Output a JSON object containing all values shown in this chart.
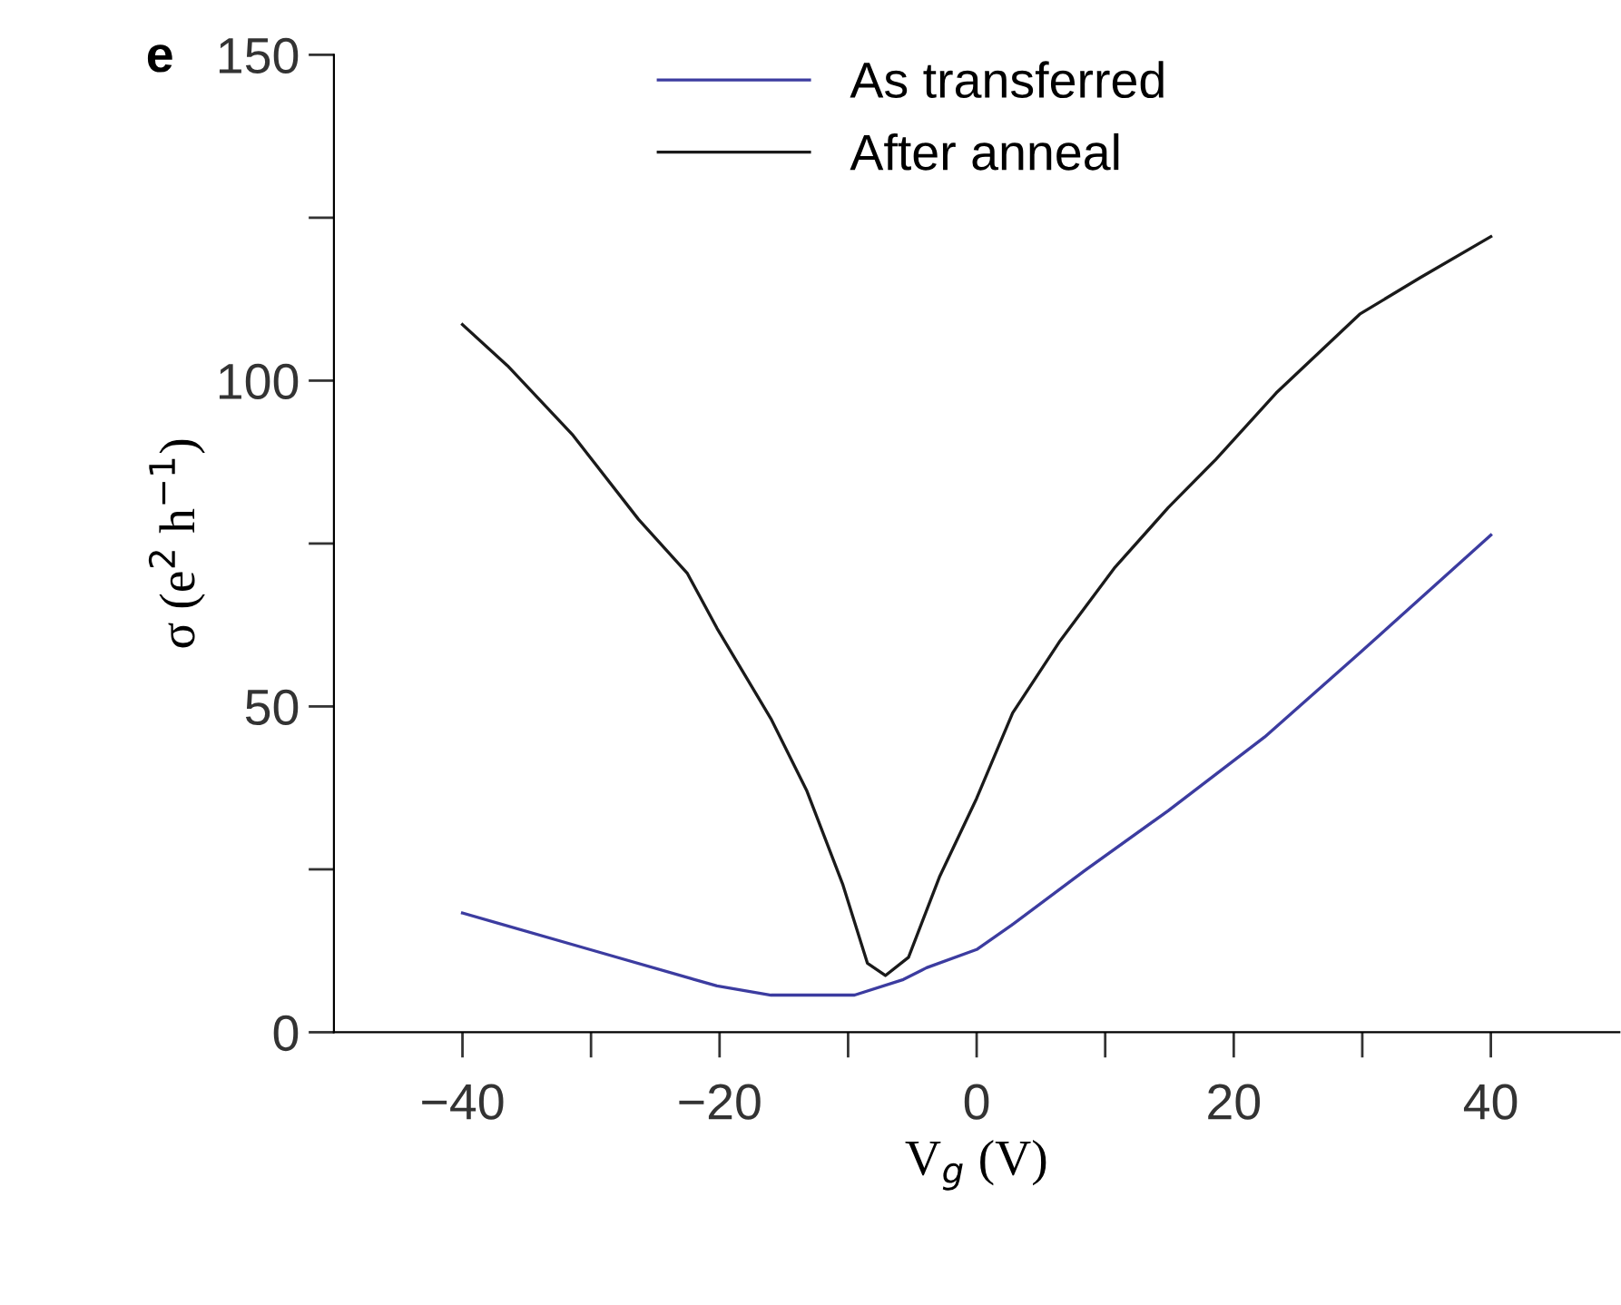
{
  "chart_data": {
    "type": "line",
    "xlabel": "V$_{g}$ (V)",
    "ylabel": "σ (e$^{2}$ h$^{−1}$)",
    "annotations": [
      "e"
    ],
    "xlim": [
      -50,
      50
    ],
    "xticks": [
      -40,
      {
        "value": -30,
        "label": null
      },
      -20,
      {
        "value": -10,
        "label": null
      },
      0,
      {
        "value": 10,
        "label": null
      },
      20,
      {
        "value": 30,
        "label": null
      },
      40
    ],
    "ylim": [
      0,
      150
    ],
    "yticks": [
      0,
      {
        "value": 25,
        "label": null
      },
      50,
      {
        "value": 75,
        "label": null
      },
      100,
      {
        "value": 125,
        "label": null
      },
      150
    ],
    "grid": false,
    "legend": "top",
    "marker": "none",
    "line_style": "solid",
    "series": [
      {
        "name": "As transferred",
        "color": "#3c3ca0",
        "x": [
          -40,
          -30.1,
          -20.2,
          -16,
          -9.5,
          -5.7,
          -3.9,
          0,
          2.7,
          8.4,
          14.9,
          22.4,
          29.8,
          40
        ],
        "values": [
          18.3,
          12.7,
          7.1,
          5.7,
          5.7,
          8.1,
          9.9,
          12.7,
          16.4,
          24.8,
          34,
          45.3,
          58.2,
          76.3
        ]
      },
      {
        "name": "After anneal",
        "color": "#1a1a1a",
        "x": [
          -40,
          -36.5,
          -31.4,
          -26.3,
          -22.5,
          -20.2,
          -16,
          -13.2,
          -10.4,
          -8.5,
          -7.1,
          -5.3,
          -2.9,
          0,
          2.8,
          6.5,
          10.7,
          14.9,
          18.6,
          23.3,
          29.8,
          34.5,
          40
        ],
        "values": [
          108.6,
          102.3,
          91.6,
          78.7,
          70.4,
          62,
          48.1,
          37,
          22.6,
          10.6,
          8.7,
          11.5,
          23.8,
          35.9,
          49,
          60.1,
          71.2,
          80.5,
          87.9,
          98.1,
          110.2,
          115.8,
          122.1
        ]
      }
    ]
  }
}
